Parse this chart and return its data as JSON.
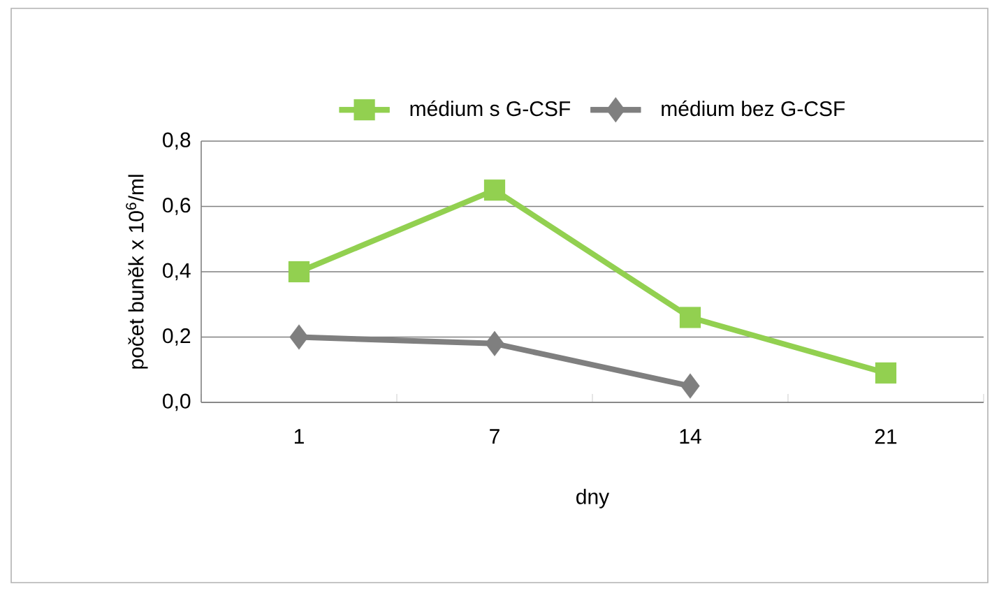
{
  "chart_data": {
    "type": "line",
    "xlabel": "dny",
    "ylabel": "počet buněk x 10$^{6}$/ml",
    "categories": [
      "1",
      "7",
      "14",
      "21"
    ],
    "series": [
      {
        "name": "médium s G-CSF",
        "color": "#92d050",
        "marker": "square",
        "values": [
          0.4,
          0.65,
          0.26,
          0.09
        ]
      },
      {
        "name": "médium bez G-CSF",
        "color": "#7f7f7f",
        "marker": "diamond",
        "values": [
          0.2,
          0.18,
          0.05,
          null
        ]
      }
    ],
    "ylim": [
      0,
      0.8
    ],
    "yticks": [
      {
        "value": 0,
        "label": "0,0"
      },
      {
        "value": 0.2,
        "label": "0,2"
      },
      {
        "value": 0.4,
        "label": "0,4"
      },
      {
        "value": 0.6,
        "label": "0,6"
      },
      {
        "value": 0.8,
        "label": "0,8"
      }
    ],
    "grid": "y",
    "legend": "top"
  }
}
